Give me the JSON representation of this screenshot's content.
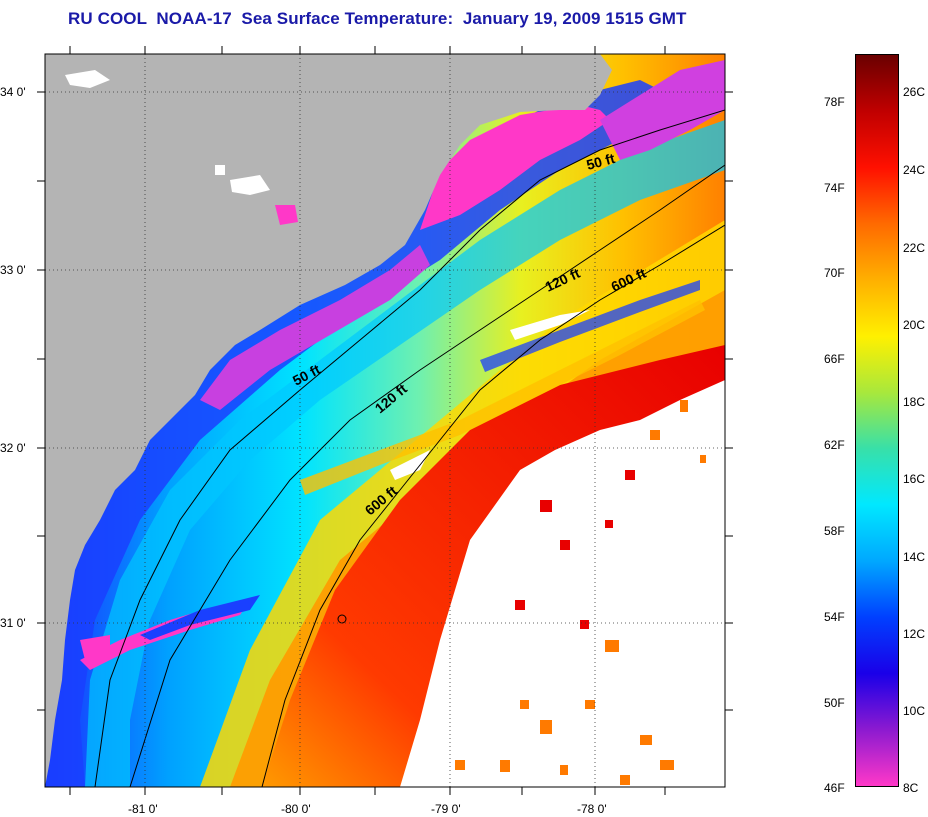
{
  "title": "RU COOL  NOAA-17  Sea Surface Temperature:  January 19, 2009 1515 GMT",
  "map": {
    "lat_range": [
      30.2,
      34.2
    ],
    "lon_range": [
      -81.7,
      -77.1
    ],
    "lat_labels": [
      "34 0'",
      "33 0'",
      "32 0'",
      "31 0'"
    ],
    "lon_labels": [
      "-81 0'",
      "-80 0'",
      "-79 0'",
      "-78 0'"
    ],
    "grid": "dotted",
    "isobath_labels": [
      {
        "text": "50 ft",
        "key": "north"
      },
      {
        "text": "120 ft",
        "key": "north"
      },
      {
        "text": "600 ft",
        "key": "north"
      },
      {
        "text": "50 ft",
        "key": "mid"
      },
      {
        "text": "120 ft",
        "key": "mid"
      },
      {
        "text": "600 ft",
        "key": "south"
      }
    ],
    "land_color": "#b4b4b4",
    "no_data_color": "#ffffff"
  },
  "colorbar": {
    "fahrenheit_labels": [
      "78F",
      "74F",
      "70F",
      "66F",
      "62F",
      "58F",
      "54F",
      "50F",
      "46F"
    ],
    "celsius_labels": [
      "26C",
      "24C",
      "22C",
      "20C",
      "18C",
      "16C",
      "14C",
      "12C",
      "10C",
      "8C"
    ],
    "colors_top_to_bottom": [
      "#6a0000",
      "#c00000",
      "#ff1000",
      "#ff6a00",
      "#ffb000",
      "#fff000",
      "#a8e83c",
      "#38e0a8",
      "#00e8ff",
      "#00a8ff",
      "#0040ff",
      "#1a00e8",
      "#8c1ad0",
      "#ff38c8"
    ]
  }
}
